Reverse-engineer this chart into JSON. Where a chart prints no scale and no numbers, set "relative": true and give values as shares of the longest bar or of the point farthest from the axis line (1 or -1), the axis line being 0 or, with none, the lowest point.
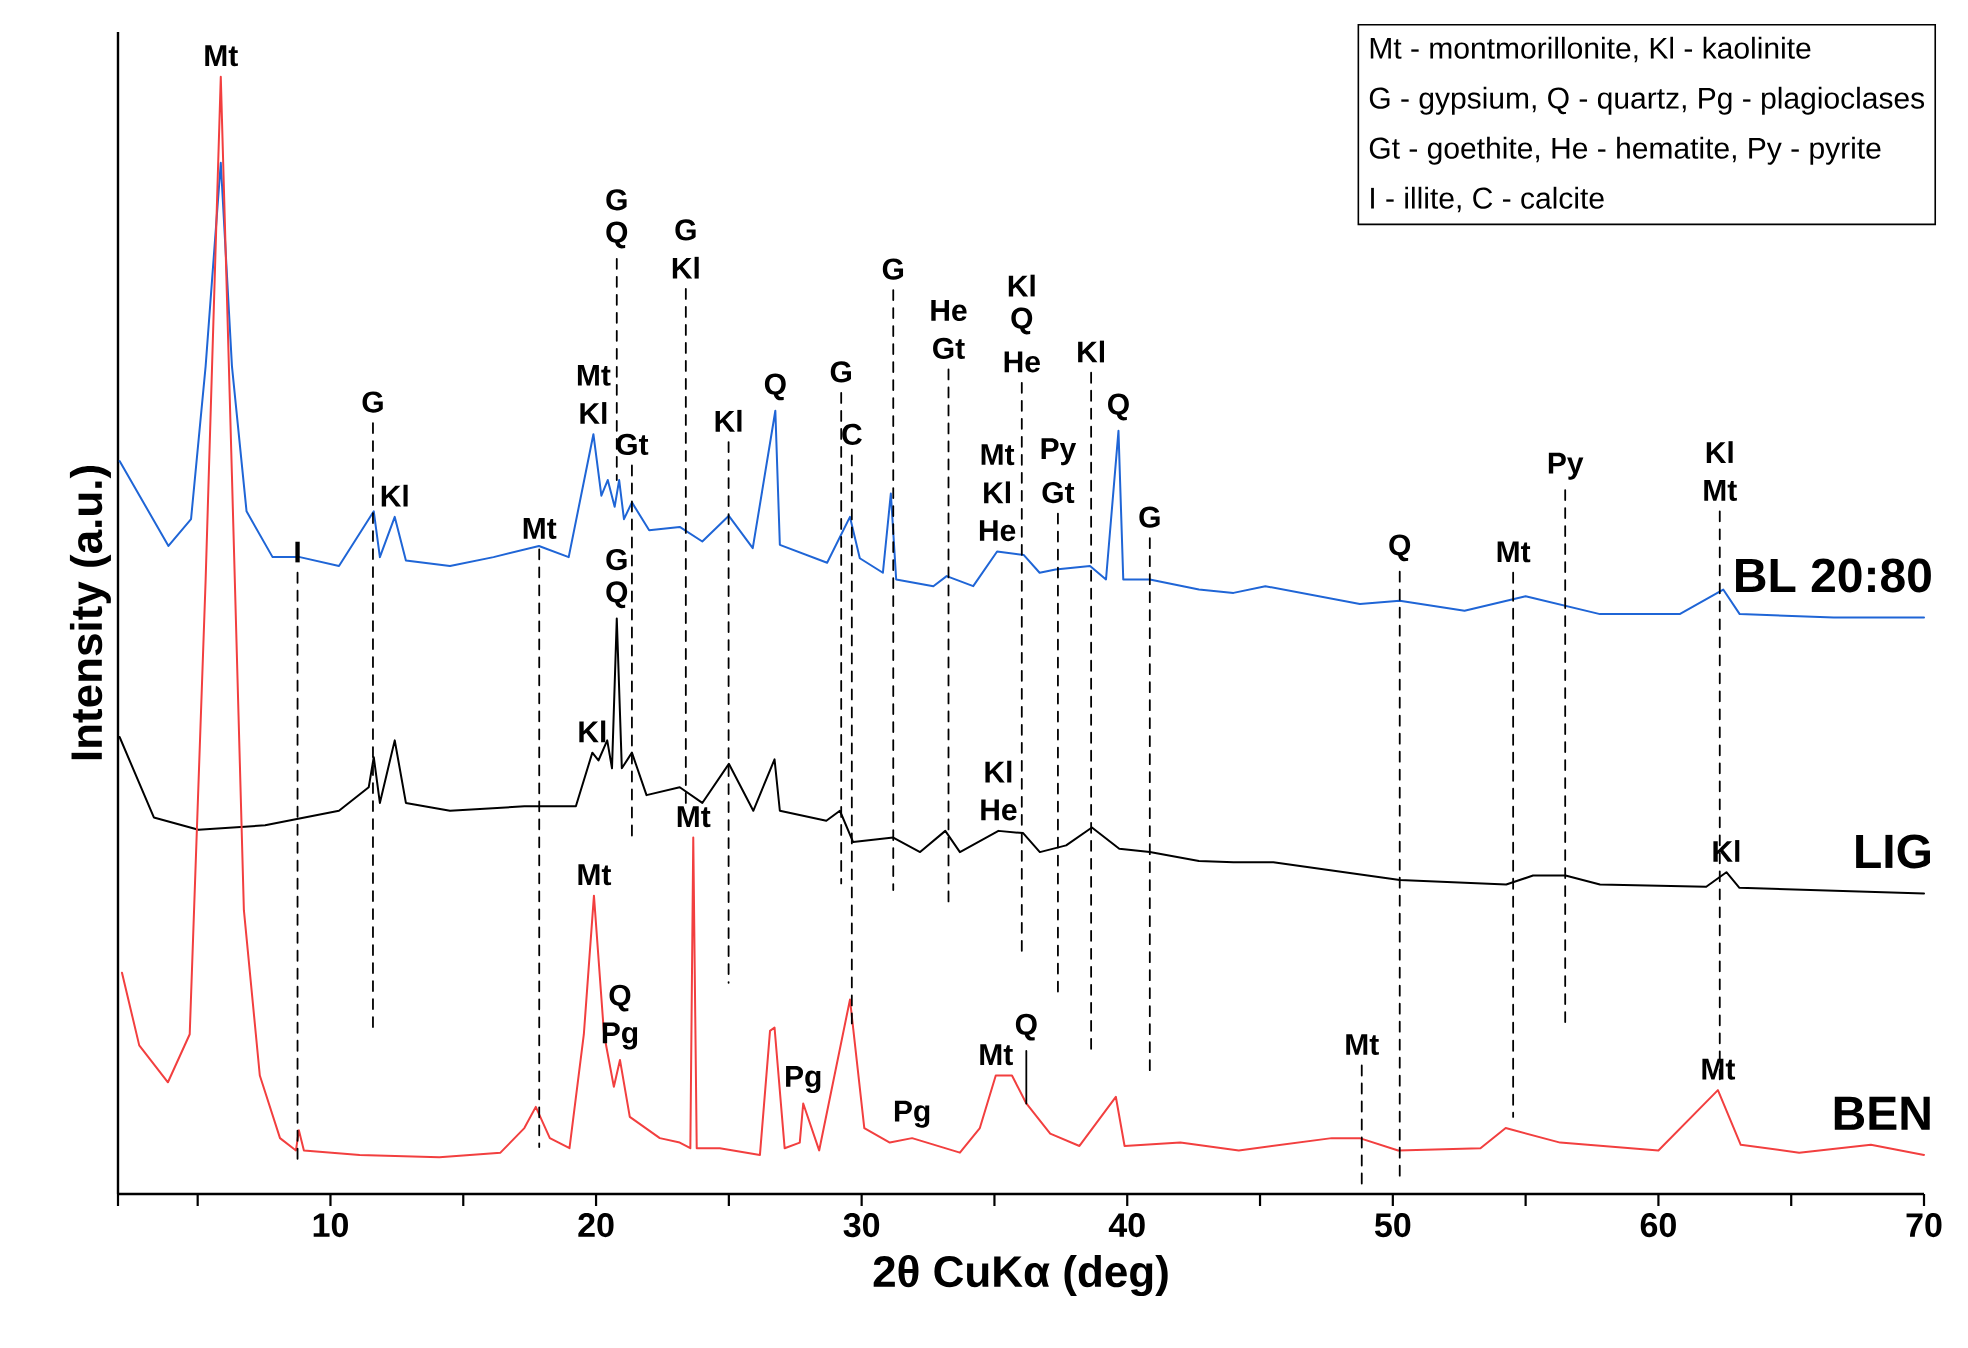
{
  "chart_data": {
    "type": "line",
    "relative": true,
    "xlabel": "2θ CuKα (deg)",
    "ylabel": "Intensity (a.u.)",
    "xlim": [
      2,
      70
    ],
    "xticks": [
      {
        "value": 2,
        "label": null
      },
      {
        "value": 5,
        "label": null
      },
      10,
      {
        "value": 15,
        "label": null
      },
      20,
      {
        "value": 25,
        "label": null
      },
      30,
      {
        "value": 35,
        "label": null
      },
      40,
      {
        "value": 45,
        "label": null
      },
      50,
      {
        "value": 55,
        "label": null
      },
      60,
      {
        "value": 65,
        "label": null
      },
      70
    ],
    "marker": "none",
    "line_style": "solid",
    "series": [
      {
        "name": "BL 20:80",
        "color": "#1f65d6",
        "x": [
          2.06,
          3.9,
          4.75,
          5.3,
          5.87,
          6.29,
          6.84,
          7.82,
          8.85,
          10.32,
          11.63,
          11.86,
          12.42,
          12.84,
          14.5,
          16.14,
          17.85,
          18.97,
          19.9,
          20.2,
          20.44,
          20.7,
          20.87,
          21.05,
          21.35,
          22.0,
          23.15,
          24.0,
          25.0,
          25.9,
          26.75,
          26.92,
          28.7,
          29.56,
          29.93,
          30.8,
          31.1,
          31.3,
          32.7,
          33.2,
          34.2,
          35.1,
          36.1,
          36.7,
          37.3,
          38.6,
          39.2,
          39.67,
          39.85,
          40.85,
          42.7,
          44.0,
          45.2,
          48.76,
          50.26,
          52.7,
          55.0,
          57.8,
          60.8,
          62.44,
          63.06,
          66.6,
          70
        ],
        "values": [
          0.656,
          0.58,
          0.604,
          0.741,
          0.923,
          0.741,
          0.611,
          0.57,
          0.57,
          0.562,
          0.611,
          0.57,
          0.606,
          0.567,
          0.562,
          0.57,
          0.58,
          0.57,
          0.68,
          0.625,
          0.639,
          0.615,
          0.639,
          0.604,
          0.619,
          0.594,
          0.597,
          0.584,
          0.607,
          0.578,
          0.701,
          0.581,
          0.565,
          0.606,
          0.569,
          0.556,
          0.627,
          0.55,
          0.544,
          0.553,
          0.544,
          0.575,
          0.572,
          0.556,
          0.559,
          0.562,
          0.55,
          0.683,
          0.55,
          0.55,
          0.541,
          0.538,
          0.544,
          0.528,
          0.531,
          0.522,
          0.535,
          0.519,
          0.519,
          0.541,
          0.519,
          0.516,
          0.516
        ]
      },
      {
        "name": "LIG",
        "color": "#000000",
        "x": [
          2.06,
          3.35,
          5.03,
          7.54,
          10.32,
          11.44,
          11.63,
          11.86,
          12.42,
          12.84,
          14.5,
          17.3,
          19.24,
          19.86,
          20.09,
          20.42,
          20.6,
          20.78,
          20.97,
          21.35,
          21.9,
          23.15,
          24.0,
          25.0,
          25.92,
          26.72,
          26.92,
          28.67,
          29.18,
          29.68,
          31.19,
          32.2,
          33.15,
          33.7,
          35.15,
          36.08,
          36.71,
          37.7,
          38.67,
          39.7,
          40.85,
          42.7,
          44.0,
          45.5,
          50.26,
          54.27,
          55.28,
          56.5,
          57.8,
          61.8,
          62.56,
          63.05,
          70
        ],
        "values": [
          0.409,
          0.337,
          0.326,
          0.33,
          0.343,
          0.364,
          0.391,
          0.35,
          0.406,
          0.35,
          0.343,
          0.347,
          0.347,
          0.395,
          0.388,
          0.406,
          0.381,
          0.515,
          0.381,
          0.395,
          0.357,
          0.364,
          0.35,
          0.385,
          0.343,
          0.389,
          0.343,
          0.334,
          0.343,
          0.315,
          0.319,
          0.306,
          0.325,
          0.306,
          0.325,
          0.323,
          0.306,
          0.312,
          0.328,
          0.309,
          0.306,
          0.298,
          0.297,
          0.297,
          0.281,
          0.277,
          0.285,
          0.285,
          0.277,
          0.275,
          0.288,
          0.274,
          0.269
        ]
      },
      {
        "name": "BEN",
        "color": "#f23f3f",
        "x": [
          2.15,
          2.8,
          3.88,
          4.7,
          5.3,
          5.87,
          6.29,
          6.74,
          7.34,
          8.1,
          8.7,
          8.81,
          9.0,
          11.1,
          14.1,
          16.4,
          17.3,
          17.73,
          18.26,
          19.0,
          19.54,
          19.92,
          20.3,
          20.67,
          20.9,
          21.27,
          22.4,
          23.15,
          23.55,
          23.66,
          23.79,
          24.66,
          26.17,
          26.55,
          26.72,
          27.1,
          27.67,
          27.8,
          28.4,
          29.56,
          30.1,
          31.06,
          31.9,
          33.7,
          34.45,
          35.05,
          35.66,
          36.2,
          37.1,
          38.2,
          39.57,
          39.9,
          42.0,
          44.2,
          47.7,
          48.75,
          50.2,
          53.3,
          54.25,
          56.3,
          60.0,
          62.24,
          63.1,
          65.3,
          68.0,
          70
        ],
        "values": [
          0.198,
          0.133,
          0.1,
          0.143,
          0.55,
          1.0,
          0.643,
          0.254,
          0.106,
          0.05,
          0.039,
          0.057,
          0.039,
          0.035,
          0.033,
          0.037,
          0.059,
          0.078,
          0.05,
          0.041,
          0.143,
          0.267,
          0.143,
          0.096,
          0.12,
          0.069,
          0.05,
          0.046,
          0.041,
          0.319,
          0.041,
          0.041,
          0.035,
          0.146,
          0.149,
          0.041,
          0.046,
          0.081,
          0.039,
          0.174,
          0.059,
          0.046,
          0.05,
          0.037,
          0.059,
          0.106,
          0.106,
          0.081,
          0.054,
          0.043,
          0.087,
          0.043,
          0.046,
          0.039,
          0.05,
          0.05,
          0.039,
          0.041,
          0.059,
          0.046,
          0.039,
          0.093,
          0.044,
          0.037,
          0.044,
          0.035
        ]
      },
      {
        "type": "line",
        "line_style": "dashed",
        "color": "#000000",
        "x": [
          8.76,
          8.76
        ],
        "values": [
          0.556,
          0.025
        ]
      },
      {
        "type": "line",
        "line_style": "dashed",
        "color": "#000000",
        "x": [
          11.6,
          11.6
        ],
        "values": [
          0.69,
          0.148
        ]
      },
      {
        "type": "line",
        "line_style": "dashed",
        "color": "#000000",
        "x": [
          17.86,
          17.86
        ],
        "values": [
          0.577,
          0.042
        ]
      },
      {
        "type": "line",
        "line_style": "dashed",
        "color": "#000000",
        "x": [
          20.78,
          20.78
        ],
        "values": [
          0.837,
          0.639
        ]
      },
      {
        "type": "line",
        "line_style": "dashed",
        "color": "#000000",
        "x": [
          21.35,
          21.35
        ],
        "values": [
          0.652,
          0.316
        ]
      },
      {
        "type": "line",
        "line_style": "dashed",
        "color": "#000000",
        "x": [
          23.38,
          23.38
        ],
        "values": [
          0.81,
          0.35
        ]
      },
      {
        "type": "line",
        "line_style": "dashed",
        "color": "#000000",
        "x": [
          24.99,
          24.99
        ],
        "values": [
          0.673,
          0.189
        ]
      },
      {
        "type": "line",
        "line_style": "dashed",
        "color": "#000000",
        "x": [
          29.23,
          29.23
        ],
        "values": [
          0.717,
          0.278
        ]
      },
      {
        "type": "line",
        "line_style": "dashed",
        "color": "#000000",
        "x": [
          29.63,
          29.63
        ],
        "values": [
          0.661,
          0.149
        ]
      },
      {
        "type": "line",
        "line_style": "dashed",
        "color": "#000000",
        "x": [
          31.19,
          31.19
        ],
        "values": [
          0.809,
          0.272
        ]
      },
      {
        "type": "line",
        "line_style": "dashed",
        "color": "#000000",
        "x": [
          33.27,
          33.27
        ],
        "values": [
          0.738,
          0.26
        ]
      },
      {
        "type": "line",
        "line_style": "dashed",
        "color": "#000000",
        "x": [
          36.03,
          36.03
        ],
        "values": [
          0.726,
          0.214
        ]
      },
      {
        "type": "line",
        "line_style": "dashed",
        "color": "#000000",
        "x": [
          37.39,
          37.39
        ],
        "values": [
          0.609,
          0.18
        ]
      },
      {
        "type": "line",
        "line_style": "dashed",
        "color": "#000000",
        "x": [
          38.64,
          38.64
        ],
        "values": [
          0.735,
          0.124
        ]
      },
      {
        "type": "line",
        "line_style": "dashed",
        "color": "#000000",
        "x": [
          40.85,
          40.85
        ],
        "values": [
          0.587,
          0.106
        ]
      },
      {
        "type": "line",
        "line_style": "dashed",
        "color": "#000000",
        "x": [
          48.83,
          48.83
        ],
        "values": [
          0.115,
          0.007
        ]
      },
      {
        "type": "line",
        "line_style": "dashed",
        "color": "#000000",
        "x": [
          50.26,
          50.26
        ],
        "values": [
          0.557,
          0.013
        ]
      },
      {
        "type": "line",
        "line_style": "dashed",
        "color": "#000000",
        "x": [
          54.53,
          54.53
        ],
        "values": [
          0.556,
          0.069
        ]
      },
      {
        "type": "line",
        "line_style": "dashed",
        "color": "#000000",
        "x": [
          56.49,
          56.49
        ],
        "values": [
          0.63,
          0.152
        ]
      },
      {
        "type": "line",
        "line_style": "dashed",
        "color": "#000000",
        "x": [
          62.31,
          62.31
        ],
        "values": [
          0.611,
          0.096
        ]
      },
      {
        "type": "line",
        "line_style": "solid",
        "color": "#000000",
        "x": [
          36.2,
          36.2
        ],
        "values": [
          0.128,
          0.081
        ]
      }
    ],
    "annotations": [
      "Mt - montmorillonite, Kl - kaolinite",
      "G - gypsium, Q - quartz, Pg - plagioclases",
      "Gt - goethite,  He - hematite, Py - pyrite",
      "I - illite, C - calcite",
      {
        "text": "Mt",
        "x": 5.87,
        "y": 1.0
      },
      {
        "text": "I",
        "x": 8.76,
        "y": 0.556
      },
      {
        "text": "G",
        "x": 11.6,
        "y": 0.69
      },
      {
        "text": "Kl",
        "x": 12.42,
        "y": 0.606
      },
      {
        "text": "Mt",
        "x": 17.86,
        "y": 0.577
      },
      {
        "text": "Mt",
        "x": 19.9,
        "y": 0.68
      },
      {
        "text": "Kl",
        "x": 19.9,
        "y": 0.68
      },
      {
        "text": "G",
        "x": 20.78,
        "y": 0.837
      },
      {
        "text": "Q",
        "x": 20.78,
        "y": 0.837
      },
      {
        "text": "G",
        "x": 23.38,
        "y": 0.81
      },
      {
        "text": "Kl",
        "x": 23.38,
        "y": 0.81
      },
      {
        "text": "Gt",
        "x": 21.35,
        "y": 0.652
      },
      {
        "text": "Kl",
        "x": 24.99,
        "y": 0.673
      },
      {
        "text": "Q",
        "x": 26.75,
        "y": 0.701
      },
      {
        "text": "G",
        "x": 29.23,
        "y": 0.717
      },
      {
        "text": "C",
        "x": 29.63,
        "y": 0.661
      },
      {
        "text": "G",
        "x": 31.19,
        "y": 0.809
      },
      {
        "text": "He",
        "x": 33.27,
        "y": 0.738
      },
      {
        "text": "Gt",
        "x": 33.27,
        "y": 0.738
      },
      {
        "text": "Kl",
        "x": 36.03,
        "y": 0.726
      },
      {
        "text": "Q",
        "x": 36.03,
        "y": 0.726
      },
      {
        "text": "He",
        "x": 36.03,
        "y": 0.726
      },
      {
        "text": "Kl",
        "x": 38.64,
        "y": 0.735
      },
      {
        "text": "Q",
        "x": 39.67,
        "y": 0.683
      },
      {
        "text": "G",
        "x": 40.85,
        "y": 0.587
      },
      {
        "text": "Mt",
        "x": 35.1,
        "y": 0.575
      },
      {
        "text": "Kl",
        "x": 35.1,
        "y": 0.575
      },
      {
        "text": "He",
        "x": 35.1,
        "y": 0.575
      },
      {
        "text": "Py",
        "x": 37.39,
        "y": 0.609
      },
      {
        "text": "Gt",
        "x": 37.39,
        "y": 0.609
      },
      {
        "text": "Q",
        "x": 50.26,
        "y": 0.557
      },
      {
        "text": "Mt",
        "x": 54.53,
        "y": 0.556
      },
      {
        "text": "Py",
        "x": 56.49,
        "y": 0.63
      },
      {
        "text": "Kl",
        "x": 62.31,
        "y": 0.611
      },
      {
        "text": "Mt",
        "x": 62.31,
        "y": 0.611
      },
      {
        "text": "G",
        "x": 20.78,
        "y": 0.515
      },
      {
        "text": "Q",
        "x": 20.78,
        "y": 0.515
      },
      {
        "text": "Kl",
        "x": 19.86,
        "y": 0.395
      },
      {
        "text": "Kl",
        "x": 35.15,
        "y": 0.325
      },
      {
        "text": "He",
        "x": 35.15,
        "y": 0.325
      },
      {
        "text": "Kl",
        "x": 62.56,
        "y": 0.288
      },
      {
        "text": "Mt",
        "x": 19.92,
        "y": 0.267
      },
      {
        "text": "Mt",
        "x": 23.66,
        "y": 0.319
      },
      {
        "text": "Q",
        "x": 20.9,
        "y": 0.12
      },
      {
        "text": "Pg",
        "x": 20.9,
        "y": 0.12
      },
      {
        "text": "Pg",
        "x": 27.8,
        "y": 0.081
      },
      {
        "text": "Pg",
        "x": 31.9,
        "y": 0.05
      },
      {
        "text": "Mt",
        "x": 35.05,
        "y": 0.106
      },
      {
        "text": "Q",
        "x": 36.2,
        "y": 0.128
      },
      {
        "text": "Mt",
        "x": 48.83,
        "y": 0.115
      },
      {
        "text": "Mt",
        "x": 62.24,
        "y": 0.093
      }
    ]
  }
}
